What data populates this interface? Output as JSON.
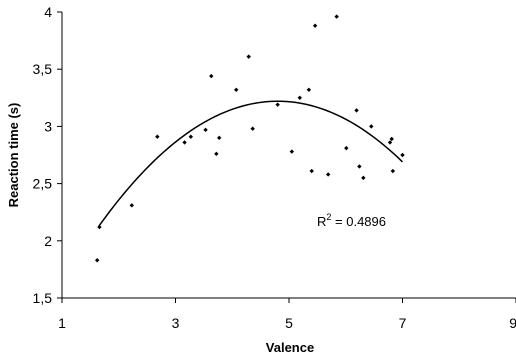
{
  "chart_data": {
    "type": "scatter",
    "xlabel": "Valence",
    "ylabel": "Reaction time (s)",
    "xlim": [
      1,
      9
    ],
    "ylim": [
      1.5,
      4
    ],
    "x_ticks": [
      1,
      3,
      5,
      7,
      9
    ],
    "x_tick_labels": [
      "1",
      "3",
      "5",
      "7",
      "9"
    ],
    "y_ticks": [
      1.5,
      2,
      2.5,
      3,
      3.5,
      4
    ],
    "y_tick_labels": [
      "1,5",
      "2",
      "2,5",
      "3",
      "3,5",
      "4"
    ],
    "grid": false,
    "points": [
      {
        "x": 1.62,
        "y": 1.83
      },
      {
        "x": 1.66,
        "y": 2.12
      },
      {
        "x": 2.23,
        "y": 2.31
      },
      {
        "x": 2.68,
        "y": 2.91
      },
      {
        "x": 3.16,
        "y": 2.86
      },
      {
        "x": 3.27,
        "y": 2.91
      },
      {
        "x": 3.53,
        "y": 2.97
      },
      {
        "x": 3.63,
        "y": 3.44
      },
      {
        "x": 3.72,
        "y": 2.76
      },
      {
        "x": 3.77,
        "y": 2.9
      },
      {
        "x": 4.07,
        "y": 3.32
      },
      {
        "x": 4.29,
        "y": 3.61
      },
      {
        "x": 4.36,
        "y": 2.98
      },
      {
        "x": 4.8,
        "y": 3.19
      },
      {
        "x": 5.05,
        "y": 2.78
      },
      {
        "x": 5.19,
        "y": 3.25
      },
      {
        "x": 5.35,
        "y": 3.32
      },
      {
        "x": 5.4,
        "y": 2.61
      },
      {
        "x": 5.46,
        "y": 3.88
      },
      {
        "x": 5.69,
        "y": 2.58
      },
      {
        "x": 5.84,
        "y": 3.96
      },
      {
        "x": 6.01,
        "y": 2.81
      },
      {
        "x": 6.19,
        "y": 3.14
      },
      {
        "x": 6.24,
        "y": 2.65
      },
      {
        "x": 6.31,
        "y": 2.55
      },
      {
        "x": 6.45,
        "y": 3.0
      },
      {
        "x": 6.78,
        "y": 2.86
      },
      {
        "x": 6.81,
        "y": 2.89
      },
      {
        "x": 6.83,
        "y": 2.61
      },
      {
        "x": 7.0,
        "y": 2.75
      }
    ],
    "trendline": {
      "type": "polynomial-2",
      "x_range": [
        1.65,
        7.0
      ],
      "coefficients": [
        -0.1099,
        1.0555,
        0.686
      ],
      "r2_label_prefix": "R",
      "r2_label_sup": "2",
      "r2_label_value": " = 0.4896"
    }
  }
}
